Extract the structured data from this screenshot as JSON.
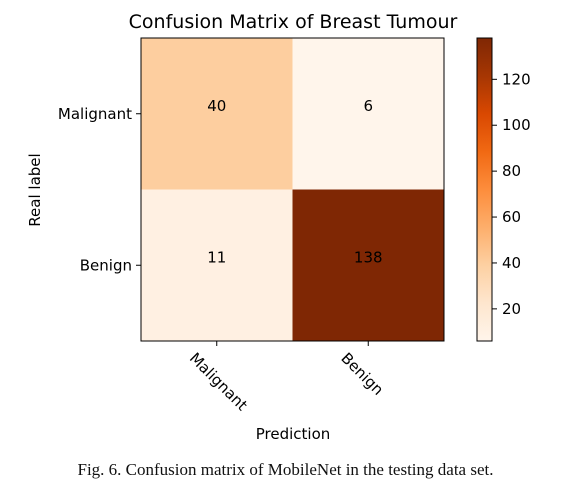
{
  "chart_data": {
    "type": "heatmap",
    "title": "Confusion Matrix of Breast Tumour",
    "xlabel": "Prediction",
    "ylabel": "Real label",
    "x_categories": [
      "Malignant",
      "Benign"
    ],
    "y_categories": [
      "Malignant",
      "Benign"
    ],
    "values": [
      [
        40,
        6
      ],
      [
        11,
        138
      ]
    ],
    "colormap": "Oranges",
    "color_range": [
      6,
      138
    ],
    "colorbar_ticks": [
      20,
      40,
      60,
      80,
      100,
      120
    ]
  },
  "caption": "Fig. 6.  Confusion matrix of MobileNet in the testing data set."
}
